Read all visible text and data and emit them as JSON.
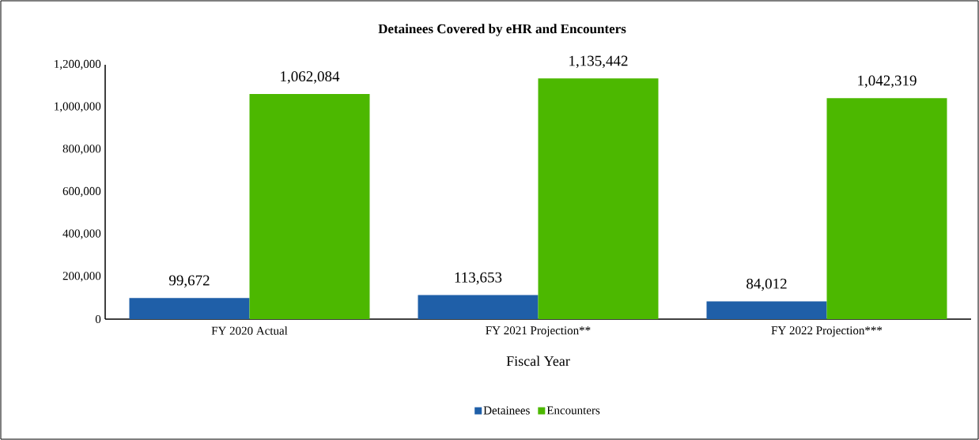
{
  "chart_data": {
    "type": "bar",
    "title": "Detainees Covered by eHR and Encounters",
    "xlabel": "Fiscal Year",
    "categories": [
      "FY 2020 Actual",
      "FY 2021 Projection**",
      "FY 2022 Projection***"
    ],
    "series": [
      {
        "name": "Detainees",
        "color": "#1f5fa8",
        "values": [
          99672,
          113653,
          84012
        ],
        "value_labels": [
          "99,672",
          "113,653",
          "84,012"
        ]
      },
      {
        "name": "Encounters",
        "color": "#4cb800",
        "values": [
          1062084,
          1135442,
          1042319
        ],
        "value_labels": [
          "1,062,084",
          "1,135,442",
          "1,042,319"
        ]
      }
    ],
    "ylim": [
      0,
      1200000
    ],
    "yticks": [
      0,
      {
        "value": 200000,
        "label": "200,000"
      },
      {
        "value": 400000,
        "label": "400,000"
      },
      {
        "value": 600000,
        "label": "600,000"
      },
      {
        "value": 800000,
        "label": "800,000"
      },
      {
        "value": 1000000,
        "label": "1,000,000"
      },
      {
        "value": 1200000,
        "label": "1,200,000"
      }
    ],
    "legend": "bottom",
    "grid": false
  }
}
